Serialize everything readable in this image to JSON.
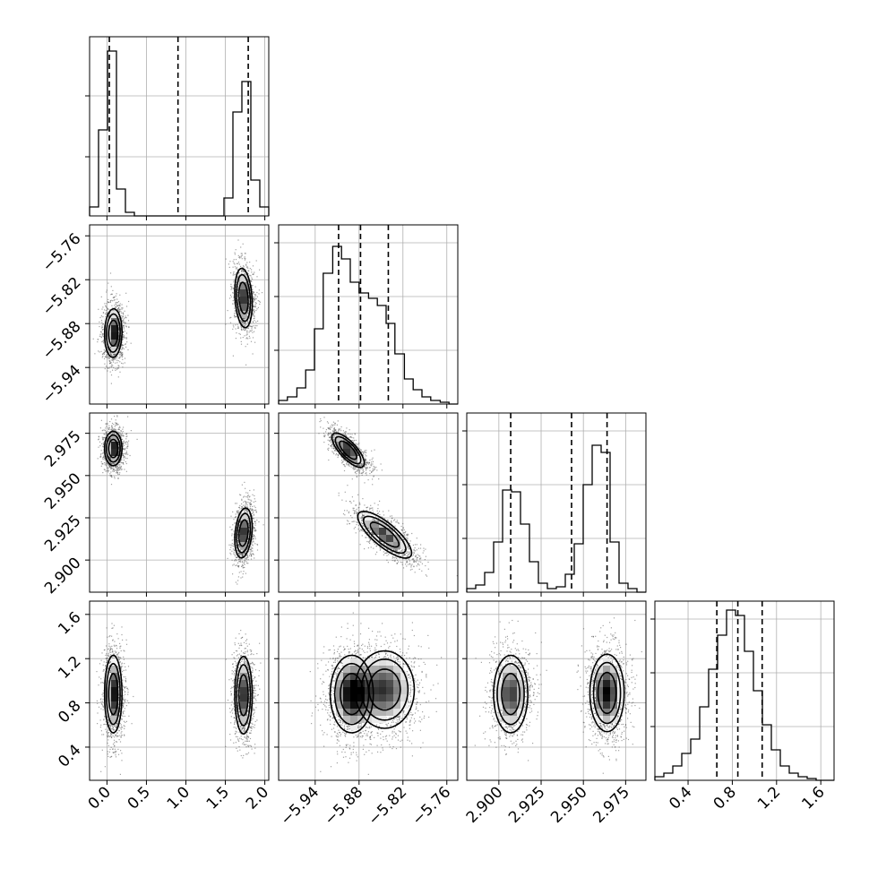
{
  "chart_data": {
    "type": "corner",
    "grid": true,
    "colors": {
      "points": "#555555",
      "line": "#000000",
      "grid": "#b0b0b0"
    },
    "axes": [
      {
        "range": [
          -0.22,
          2.05
        ],
        "ticks": [
          0.0,
          0.5,
          1.0,
          1.5,
          2.0
        ],
        "tick_labels": [
          "0.0",
          "0.5",
          "1.0",
          "1.5",
          "2.0"
        ]
      },
      {
        "range": [
          -5.99,
          -5.745
        ],
        "ticks": [
          -5.94,
          -5.88,
          -5.82,
          -5.76
        ],
        "tick_labels": [
          "−5.94",
          "−5.88",
          "−5.82",
          "−5.76"
        ]
      },
      {
        "range": [
          2.881,
          2.987
        ],
        "ticks": [
          2.9,
          2.925,
          2.95,
          2.975
        ],
        "tick_labels": [
          "2.900",
          "2.925",
          "2.950",
          "2.975"
        ]
      },
      {
        "range": [
          0.1,
          1.72
        ],
        "ticks": [
          0.4,
          0.8,
          1.2,
          1.6
        ],
        "tick_labels": [
          "0.4",
          "0.8",
          "1.2",
          "1.6"
        ]
      }
    ],
    "histograms": [
      {
        "edges": [
          -0.22,
          -0.106,
          0.007,
          0.121,
          0.234,
          0.348,
          0.461,
          0.575,
          0.688,
          0.802,
          0.915,
          1.029,
          1.142,
          1.256,
          1.369,
          1.483,
          1.596,
          1.71,
          1.823,
          1.937,
          2.05
        ],
        "counts": [
          0.05,
          0.48,
          0.92,
          0.15,
          0.02,
          0,
          0,
          0,
          0,
          0,
          0,
          0,
          0,
          0,
          0,
          0.1,
          0.58,
          0.75,
          0.2,
          0.05
        ],
        "quantiles": [
          0.03,
          0.9,
          1.79
        ],
        "ymax": 1.0,
        "grid_y": [
          0.33,
          0.67
        ]
      },
      {
        "edges": [
          -5.99,
          -5.978,
          -5.965,
          -5.953,
          -5.941,
          -5.929,
          -5.916,
          -5.904,
          -5.892,
          -5.88,
          -5.867,
          -5.855,
          -5.843,
          -5.831,
          -5.818,
          -5.806,
          -5.794,
          -5.782,
          -5.769,
          -5.757,
          -5.745
        ],
        "counts": [
          0.02,
          0.04,
          0.09,
          0.19,
          0.42,
          0.73,
          0.88,
          0.81,
          0.68,
          0.62,
          0.59,
          0.55,
          0.45,
          0.28,
          0.14,
          0.08,
          0.04,
          0.02,
          0.01,
          0
        ],
        "quantiles": [
          -5.908,
          -5.878,
          -5.84
        ],
        "ymax": 1.0,
        "grid_y": [
          0.3,
          0.6,
          0.9
        ]
      },
      {
        "edges": [
          2.881,
          2.8863,
          2.8916,
          2.8969,
          2.9022,
          2.9075,
          2.9128,
          2.9181,
          2.9234,
          2.9287,
          2.934,
          2.9393,
          2.9446,
          2.9499,
          2.9552,
          2.9605,
          2.9658,
          2.9711,
          2.9764,
          2.9817,
          2.987
        ],
        "counts": [
          0.02,
          0.04,
          0.11,
          0.28,
          0.57,
          0.56,
          0.38,
          0.17,
          0.05,
          0.02,
          0.03,
          0.1,
          0.27,
          0.6,
          0.82,
          0.78,
          0.28,
          0.05,
          0.02,
          0
        ],
        "quantiles": [
          2.907,
          2.943,
          2.964
        ],
        "ymax": 1.0,
        "grid_y": [
          0.3,
          0.6,
          0.9
        ]
      },
      {
        "edges": [
          0.1,
          0.181,
          0.262,
          0.343,
          0.424,
          0.505,
          0.586,
          0.667,
          0.748,
          0.829,
          0.91,
          0.991,
          1.072,
          1.153,
          1.234,
          1.315,
          1.396,
          1.477,
          1.558,
          1.639,
          1.72
        ],
        "counts": [
          0.02,
          0.04,
          0.08,
          0.15,
          0.23,
          0.41,
          0.62,
          0.81,
          0.95,
          0.92,
          0.72,
          0.5,
          0.31,
          0.17,
          0.08,
          0.04,
          0.02,
          0.01,
          0,
          0
        ],
        "quantiles": [
          0.66,
          0.85,
          1.07
        ],
        "ymax": 1.0,
        "grid_y": [
          0.3,
          0.6,
          0.9
        ]
      }
    ],
    "joints": [
      {
        "x": 0,
        "y": 1,
        "blobs": [
          {
            "cx": 0.08,
            "cy": -5.893,
            "sx": 0.06,
            "sy": 0.018,
            "rho": 0.05,
            "w": 1.0,
            "n": 1300
          },
          {
            "cx": 1.73,
            "cy": -5.845,
            "sx": 0.06,
            "sy": 0.022,
            "rho": -0.2,
            "w": 0.85,
            "n": 1100
          }
        ]
      },
      {
        "x": 0,
        "y": 2,
        "blobs": [
          {
            "cx": 0.08,
            "cy": 2.966,
            "sx": 0.06,
            "sy": 0.0055,
            "rho": 0.0,
            "w": 1.0,
            "n": 1300
          },
          {
            "cx": 1.73,
            "cy": 2.916,
            "sx": 0.06,
            "sy": 0.008,
            "rho": 0.25,
            "w": 0.85,
            "n": 1100
          }
        ]
      },
      {
        "x": 0,
        "y": 3,
        "blobs": [
          {
            "cx": 0.08,
            "cy": 0.88,
            "sx": 0.06,
            "sy": 0.19,
            "rho": 0.0,
            "w": 1.0,
            "n": 1300
          },
          {
            "cx": 1.73,
            "cy": 0.87,
            "sx": 0.06,
            "sy": 0.19,
            "rho": 0.0,
            "w": 0.85,
            "n": 1100
          }
        ]
      },
      {
        "x": 1,
        "y": 2,
        "blobs": [
          {
            "cx": -5.895,
            "cy": 2.965,
            "sx": 0.012,
            "sy": 0.0055,
            "rho": -0.75,
            "w": 1.0,
            "n": 1300
          },
          {
            "cx": -5.845,
            "cy": 2.915,
            "sx": 0.02,
            "sy": 0.0075,
            "rho": -0.78,
            "w": 0.85,
            "n": 1100
          }
        ]
      },
      {
        "x": 1,
        "y": 3,
        "blobs": [
          {
            "cx": -5.89,
            "cy": 0.88,
            "sx": 0.016,
            "sy": 0.19,
            "rho": 0.0,
            "w": 1.0,
            "n": 1300
          },
          {
            "cx": -5.845,
            "cy": 0.92,
            "sx": 0.022,
            "sy": 0.19,
            "rho": 0.0,
            "w": 0.85,
            "n": 1100
          }
        ]
      },
      {
        "x": 2,
        "y": 3,
        "blobs": [
          {
            "cx": 2.907,
            "cy": 0.88,
            "sx": 0.0055,
            "sy": 0.19,
            "rho": 0.0,
            "w": 0.85,
            "n": 1100
          },
          {
            "cx": 2.964,
            "cy": 0.89,
            "sx": 0.0055,
            "sy": 0.19,
            "rho": 0.0,
            "w": 1.0,
            "n": 1300
          }
        ]
      }
    ]
  }
}
